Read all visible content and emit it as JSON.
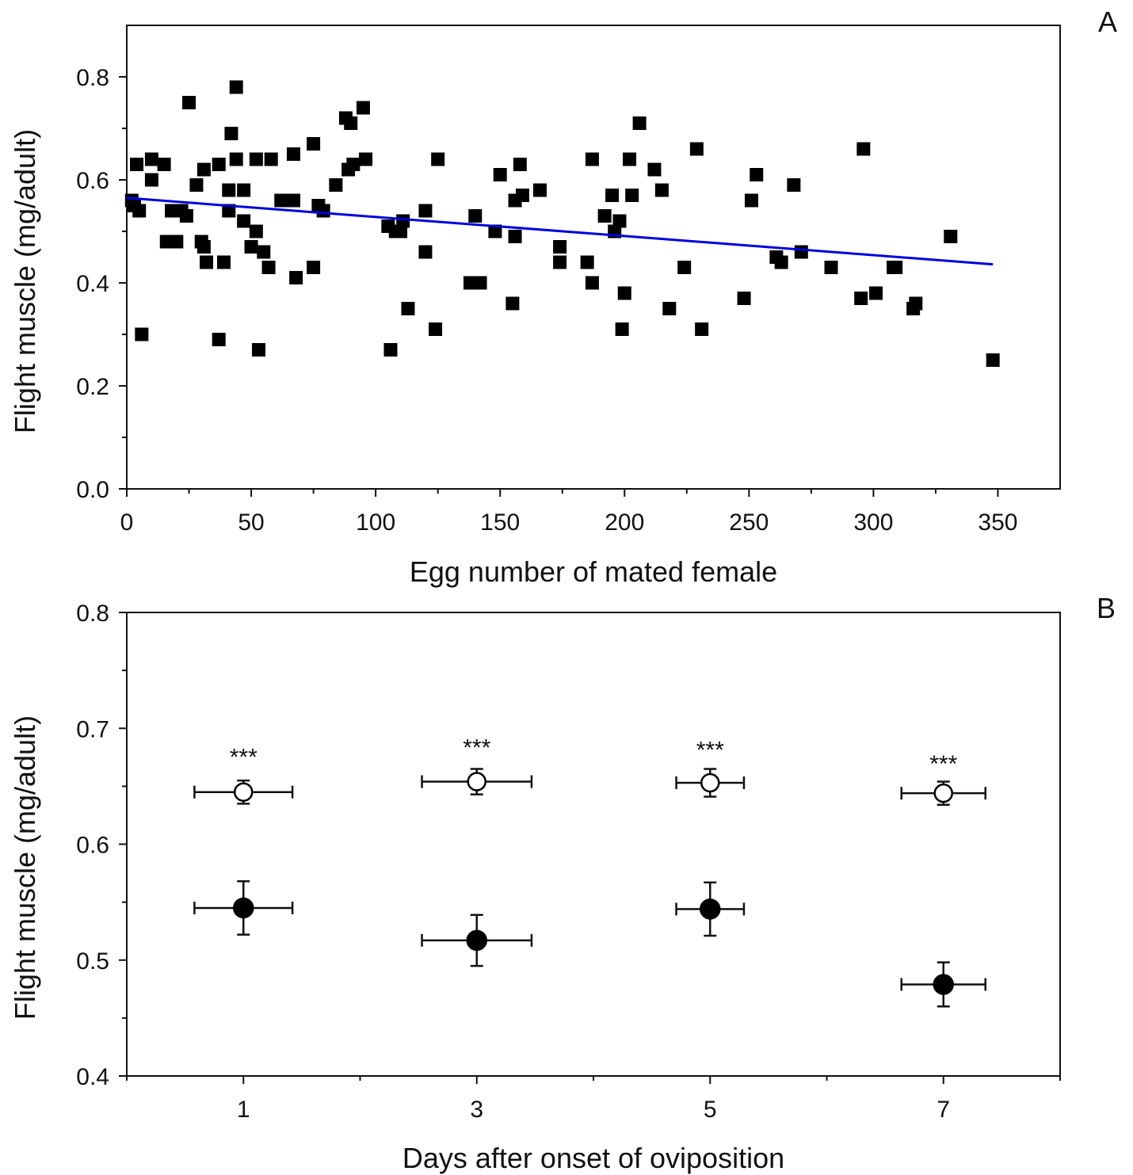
{
  "chart_data": [
    {
      "type": "scatter",
      "panel_label": "A",
      "xlabel": "Egg number of mated female",
      "ylabel": "Flight muscle (mg/adult)",
      "xlim": [
        0,
        375
      ],
      "ylim": [
        0,
        0.9
      ],
      "x_ticks": [
        0,
        50,
        100,
        150,
        200,
        250,
        300,
        350
      ],
      "x_tick_labels": [
        "0",
        "50",
        "100",
        "150",
        "200",
        "250",
        "300",
        "350"
      ],
      "y_ticks": [
        0.0,
        0.2,
        0.4,
        0.6,
        0.8
      ],
      "y_tick_labels": [
        "0.0",
        "0.2",
        "0.4",
        "0.6",
        "0.8"
      ],
      "grid": false,
      "marker": "filled-square",
      "marker_color": "#000000",
      "points": [
        [
          2,
          0.56
        ],
        [
          3,
          0.55
        ],
        [
          4,
          0.63
        ],
        [
          5,
          0.54
        ],
        [
          6,
          0.3
        ],
        [
          10,
          0.64
        ],
        [
          10,
          0.6
        ],
        [
          15,
          0.63
        ],
        [
          16,
          0.48
        ],
        [
          18,
          0.54
        ],
        [
          20,
          0.48
        ],
        [
          22,
          0.54
        ],
        [
          24,
          0.53
        ],
        [
          25,
          0.75
        ],
        [
          28,
          0.59
        ],
        [
          30,
          0.48
        ],
        [
          31,
          0.47
        ],
        [
          31,
          0.62
        ],
        [
          32,
          0.44
        ],
        [
          37,
          0.63
        ],
        [
          37,
          0.29
        ],
        [
          39,
          0.44
        ],
        [
          41,
          0.58
        ],
        [
          41,
          0.54
        ],
        [
          42,
          0.69
        ],
        [
          44,
          0.78
        ],
        [
          44,
          0.64
        ],
        [
          47,
          0.58
        ],
        [
          47,
          0.52
        ],
        [
          50,
          0.47
        ],
        [
          52,
          0.64
        ],
        [
          52,
          0.5
        ],
        [
          53,
          0.27
        ],
        [
          55,
          0.46
        ],
        [
          57,
          0.43
        ],
        [
          58,
          0.64
        ],
        [
          62,
          0.56
        ],
        [
          65,
          0.56
        ],
        [
          67,
          0.65
        ],
        [
          67,
          0.56
        ],
        [
          68,
          0.41
        ],
        [
          75,
          0.43
        ],
        [
          75,
          0.67
        ],
        [
          77,
          0.55
        ],
        [
          79,
          0.54
        ],
        [
          84,
          0.59
        ],
        [
          88,
          0.72
        ],
        [
          89,
          0.62
        ],
        [
          90,
          0.71
        ],
        [
          91,
          0.63
        ],
        [
          95,
          0.74
        ],
        [
          96,
          0.64
        ],
        [
          105,
          0.51
        ],
        [
          106,
          0.27
        ],
        [
          108,
          0.5
        ],
        [
          110,
          0.5
        ],
        [
          111,
          0.52
        ],
        [
          113,
          0.35
        ],
        [
          120,
          0.54
        ],
        [
          120,
          0.46
        ],
        [
          124,
          0.31
        ],
        [
          125,
          0.64
        ],
        [
          138,
          0.4
        ],
        [
          140,
          0.53
        ],
        [
          142,
          0.4
        ],
        [
          148,
          0.5
        ],
        [
          150,
          0.61
        ],
        [
          155,
          0.36
        ],
        [
          156,
          0.49
        ],
        [
          156,
          0.56
        ],
        [
          158,
          0.63
        ],
        [
          159,
          0.57
        ],
        [
          166,
          0.58
        ],
        [
          174,
          0.47
        ],
        [
          174,
          0.44
        ],
        [
          185,
          0.44
        ],
        [
          187,
          0.4
        ],
        [
          187,
          0.64
        ],
        [
          192,
          0.53
        ],
        [
          195,
          0.57
        ],
        [
          196,
          0.5
        ],
        [
          198,
          0.52
        ],
        [
          199,
          0.31
        ],
        [
          200,
          0.38
        ],
        [
          202,
          0.64
        ],
        [
          203,
          0.57
        ],
        [
          206,
          0.71
        ],
        [
          212,
          0.62
        ],
        [
          215,
          0.58
        ],
        [
          218,
          0.35
        ],
        [
          224,
          0.43
        ],
        [
          229,
          0.66
        ],
        [
          231,
          0.31
        ],
        [
          248,
          0.37
        ],
        [
          251,
          0.56
        ],
        [
          253,
          0.61
        ],
        [
          261,
          0.45
        ],
        [
          263,
          0.44
        ],
        [
          268,
          0.59
        ],
        [
          271,
          0.46
        ],
        [
          283,
          0.43
        ],
        [
          295,
          0.37
        ],
        [
          296,
          0.66
        ],
        [
          301,
          0.38
        ],
        [
          308,
          0.43
        ],
        [
          309,
          0.43
        ],
        [
          316,
          0.35
        ],
        [
          317,
          0.36
        ],
        [
          331,
          0.49
        ],
        [
          348,
          0.25
        ]
      ],
      "fit_line": {
        "x": [
          0,
          348
        ],
        "y": [
          0.565,
          0.436
        ],
        "color": "#0000dd"
      }
    },
    {
      "type": "scatter",
      "panel_label": "B",
      "xlabel": "Days after onset of oviposition",
      "ylabel": "Flight muscle (mg/adult)",
      "xlim": [
        0,
        8
      ],
      "ylim": [
        0.4,
        0.8
      ],
      "x_ticks": [
        1,
        3,
        5,
        7
      ],
      "x_tick_labels": [
        "1",
        "3",
        "5",
        "7"
      ],
      "x_minor_ticks": [
        0,
        2,
        4,
        6,
        8
      ],
      "y_ticks": [
        0.4,
        0.5,
        0.6,
        0.7,
        0.8
      ],
      "y_tick_labels": [
        "0.4",
        "0.5",
        "0.6",
        "0.7",
        "0.8"
      ],
      "grid": false,
      "series": [
        {
          "marker": "open-circle",
          "points": [
            {
              "x": 1,
              "y": 0.645,
              "xerr": 0.42,
              "yerr": 0.01
            },
            {
              "x": 3,
              "y": 0.654,
              "xerr": 0.47,
              "yerr": 0.011
            },
            {
              "x": 5,
              "y": 0.653,
              "xerr": 0.29,
              "yerr": 0.012
            },
            {
              "x": 7,
              "y": 0.644,
              "xerr": 0.36,
              "yerr": 0.01
            }
          ]
        },
        {
          "marker": "filled-circle",
          "points": [
            {
              "x": 1,
              "y": 0.545,
              "xerr": 0.42,
              "yerr": 0.023
            },
            {
              "x": 3,
              "y": 0.517,
              "xerr": 0.47,
              "yerr": 0.022
            },
            {
              "x": 5,
              "y": 0.544,
              "xerr": 0.29,
              "yerr": 0.023
            },
            {
              "x": 7,
              "y": 0.479,
              "xerr": 0.36,
              "yerr": 0.019
            }
          ]
        }
      ],
      "annotations": [
        {
          "text": "***",
          "x": 1,
          "y": 0.678
        },
        {
          "text": "***",
          "x": 3,
          "y": 0.686
        },
        {
          "text": "***",
          "x": 5,
          "y": 0.684
        },
        {
          "text": "***",
          "x": 7,
          "y": 0.672
        }
      ]
    }
  ]
}
